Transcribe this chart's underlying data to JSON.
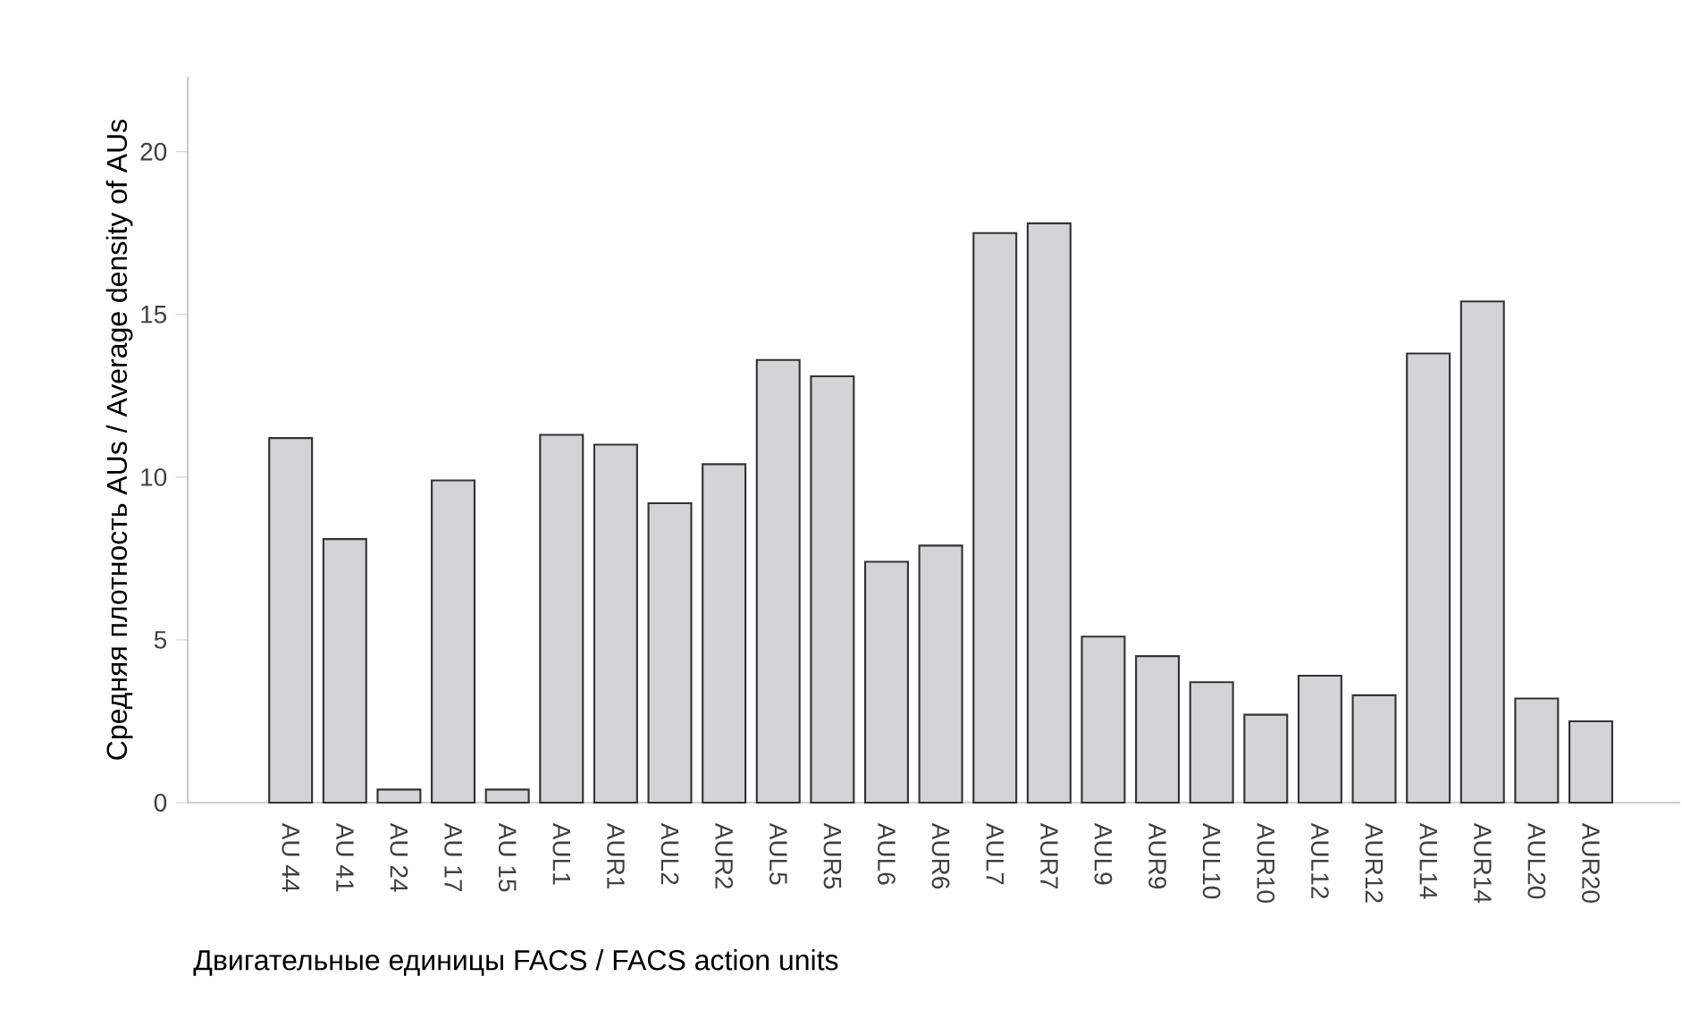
{
  "chart_data": {
    "type": "bar",
    "xlabel": "Двигательные единицы FACS / FACS action units",
    "ylabel": "Средняя плотность AUs / Average density of AUs",
    "categories": [
      "AU 44",
      "AU 41",
      "AU 24",
      "AU 17",
      "AU 15",
      "AUL1",
      "AUR1",
      "AUL2",
      "AUR2",
      "AUL5",
      "AUR5",
      "AUL6",
      "AUR6",
      "AUL7",
      "AUR7",
      "AUL9",
      "AUR9",
      "AUL10",
      "AUR10",
      "AUL12",
      "AUR12",
      "AUL14",
      "AUR14",
      "AUL20",
      "AUR20"
    ],
    "values": [
      11.2,
      8.1,
      0.4,
      9.9,
      0.4,
      11.3,
      11.0,
      9.2,
      10.4,
      13.6,
      13.1,
      7.4,
      7.9,
      17.5,
      17.8,
      5.1,
      4.5,
      3.7,
      2.7,
      3.9,
      3.3,
      13.8,
      15.4,
      3.2,
      2.5
    ],
    "color": "#d3d4d6",
    "ylim": [
      0,
      22.3
    ],
    "yticks": [
      0,
      5,
      10,
      15,
      20
    ],
    "grid": false
  }
}
